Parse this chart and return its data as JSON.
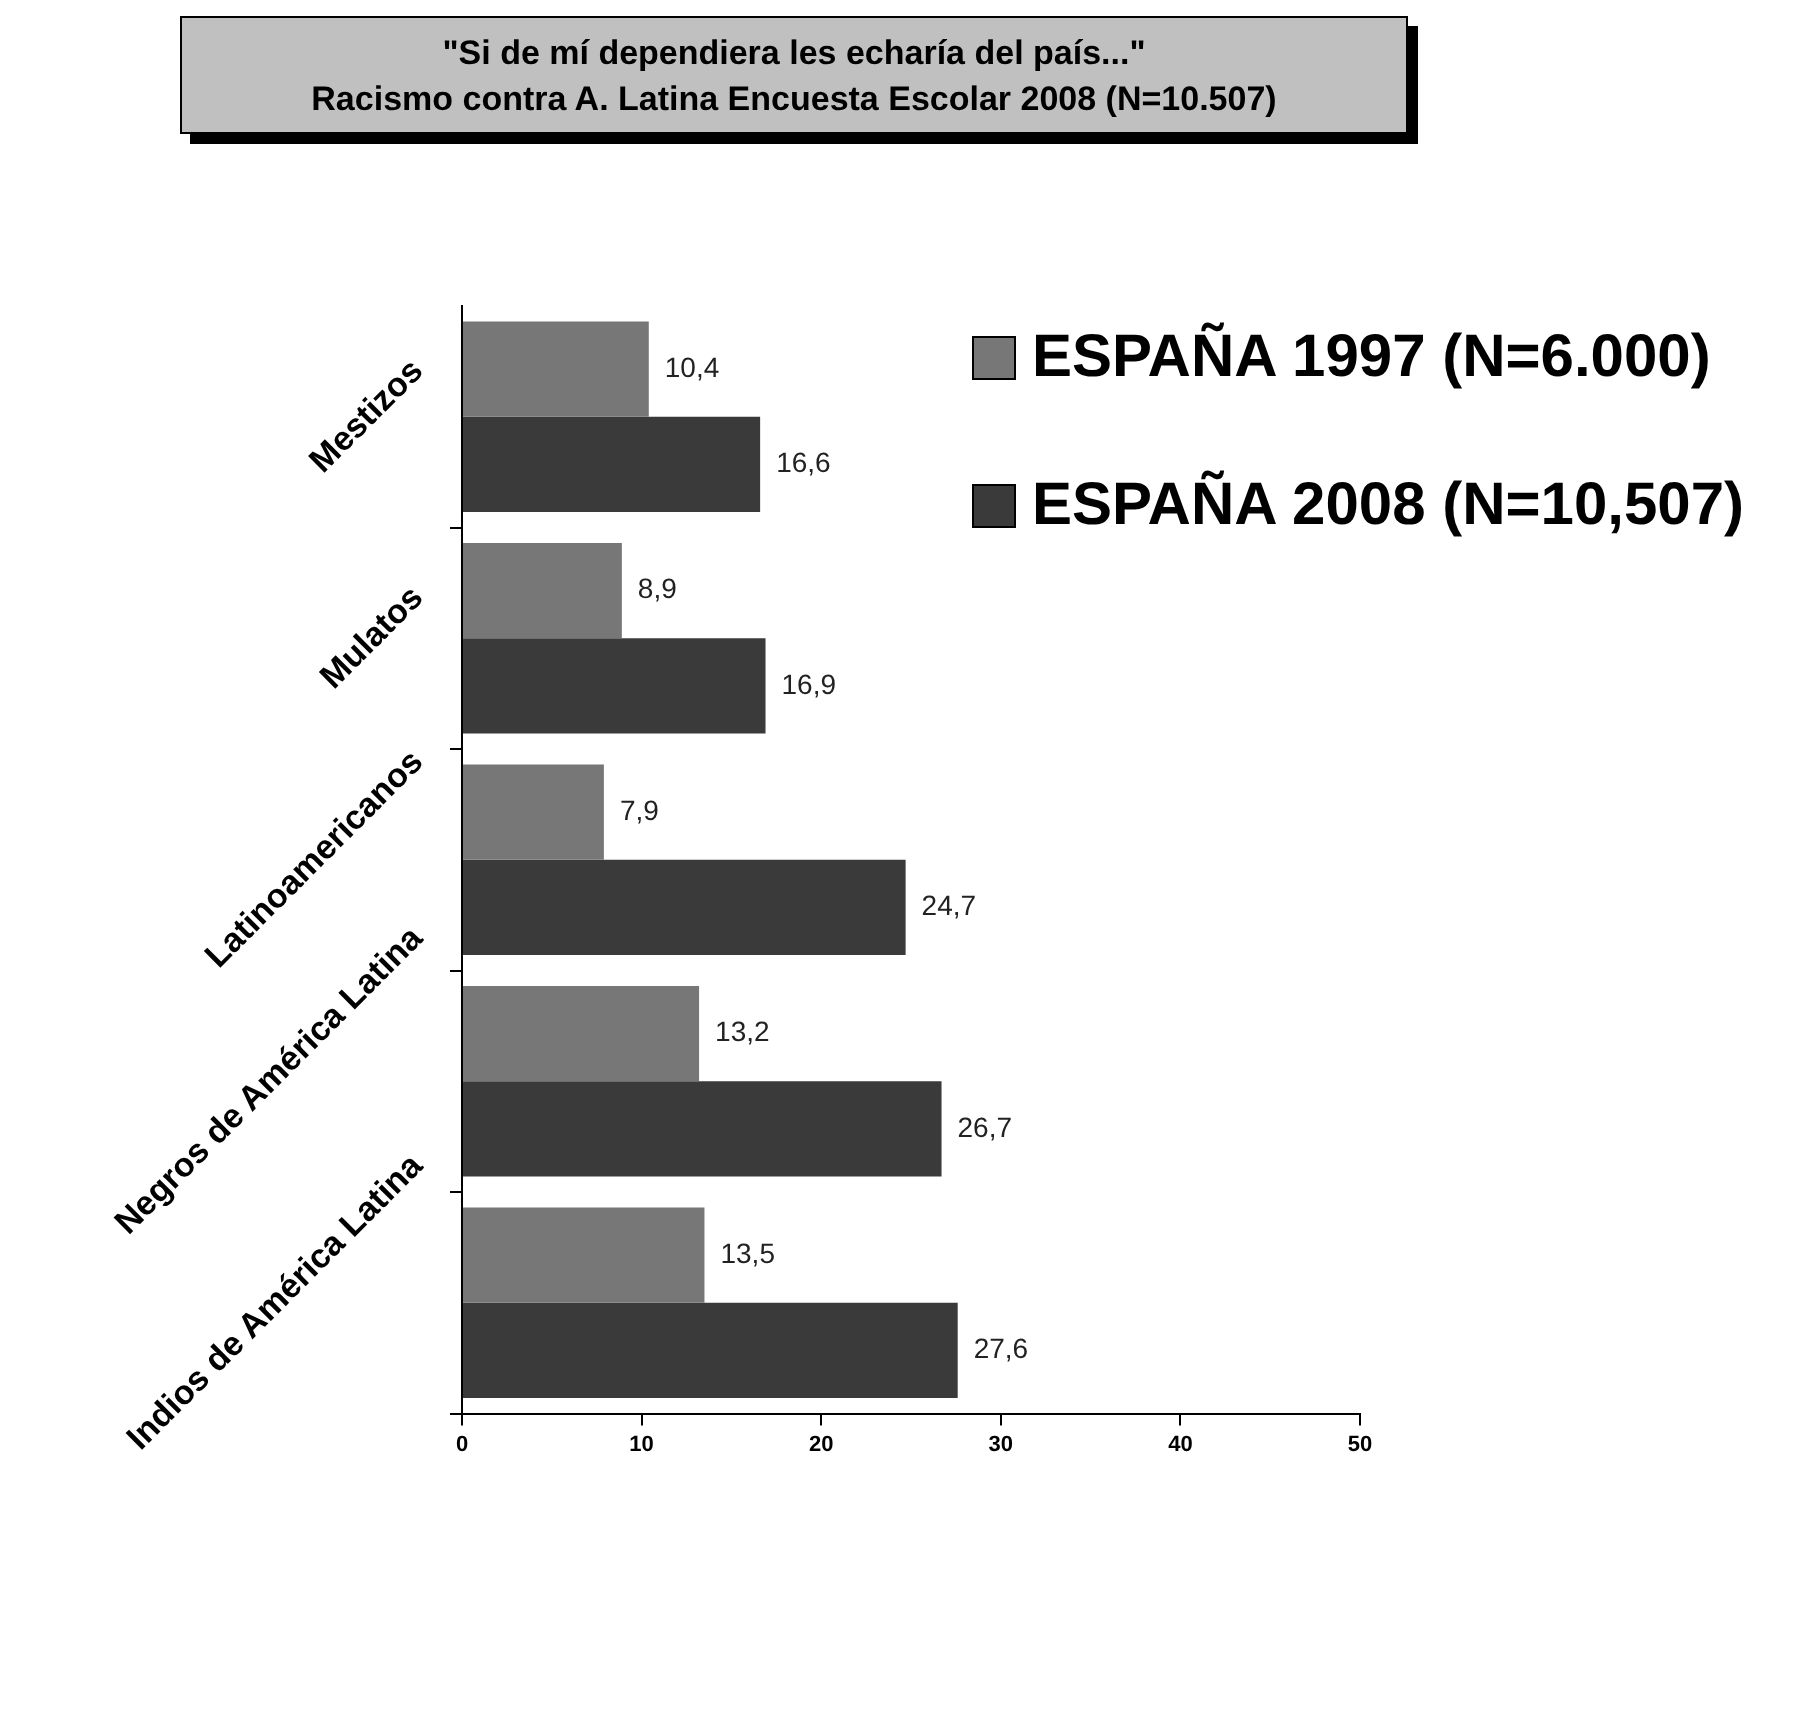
{
  "chart_data": {
    "type": "bar",
    "orientation": "horizontal",
    "title": "\"Si de mí dependiera les echaría del país...\"",
    "subtitle": "Racismo contra A. Latina Encuesta Escolar 2008 (N=10.507)",
    "categories": [
      "Mestizos",
      "Mulatos",
      "Latinoamericanos",
      "Negros de América Latina",
      "Indios de América Latina"
    ],
    "series": [
      {
        "name": "ESPAÑA 1997 (N=6.000)",
        "color": "#777777",
        "values": [
          10.4,
          8.9,
          7.9,
          13.2,
          13.5
        ],
        "value_labels": [
          "10,4",
          "8,9",
          "7,9",
          "13,2",
          "13,5"
        ]
      },
      {
        "name": "ESPAÑA 2008 (N=10,507)",
        "color": "#3a3a3a",
        "values": [
          16.6,
          16.9,
          24.7,
          26.7,
          27.6
        ],
        "value_labels": [
          "16,6",
          "16,9",
          "24,7",
          "26,7",
          "27,6"
        ]
      }
    ],
    "xlim": [
      0,
      50
    ],
    "xticks": [
      0,
      10,
      20,
      30,
      40,
      50
    ],
    "grid": false,
    "legend": "top right"
  }
}
